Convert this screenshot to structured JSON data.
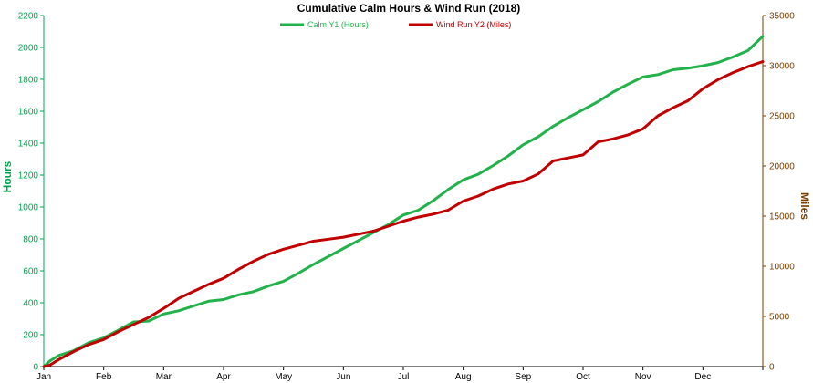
{
  "chart_data": {
    "type": "line",
    "title": "Cumulative Calm Hours & Wind Run (2018)",
    "categories": [
      "Jan",
      "Feb",
      "Mar",
      "Apr",
      "May",
      "Jun",
      "Jul",
      "Aug",
      "Sep",
      "Oct",
      "Nov",
      "Dec"
    ],
    "y1": {
      "label": "Hours",
      "lim": [
        0,
        2200
      ],
      "ticks": [
        0,
        200,
        400,
        600,
        800,
        1000,
        1200,
        1400,
        1600,
        1800,
        2000,
        2200
      ],
      "color": "#00A550"
    },
    "y2": {
      "label": "Miles",
      "lim": [
        0,
        35000
      ],
      "ticks": [
        0,
        5000,
        10000,
        15000,
        20000,
        25000,
        30000,
        35000
      ],
      "color": "#7B3F00"
    },
    "grid": false,
    "legend_position": "top",
    "series": [
      {
        "name": "Calm Y1 (Hours)",
        "axis": "y1",
        "color": "#22B24C",
        "x": [
          0,
          0.1,
          0.25,
          0.5,
          0.75,
          1,
          1.25,
          1.5,
          1.75,
          2,
          2.25,
          2.5,
          2.75,
          3,
          3.25,
          3.5,
          3.75,
          4,
          4.25,
          4.5,
          4.75,
          5,
          5.25,
          5.5,
          5.75,
          6,
          6.25,
          6.5,
          6.75,
          7,
          7.25,
          7.5,
          7.75,
          8,
          8.25,
          8.5,
          8.75,
          9,
          9.25,
          9.5,
          9.75,
          10,
          10.25,
          10.5,
          10.75,
          11,
          11.25,
          11.5,
          11.75,
          12
        ],
        "values": [
          0,
          35,
          70,
          100,
          150,
          180,
          230,
          280,
          285,
          330,
          350,
          380,
          410,
          420,
          450,
          470,
          505,
          535,
          585,
          640,
          690,
          740,
          790,
          840,
          890,
          950,
          980,
          1040,
          1110,
          1170,
          1205,
          1260,
          1320,
          1390,
          1440,
          1505,
          1560,
          1610,
          1660,
          1720,
          1770,
          1815,
          1830,
          1860,
          1870,
          1885,
          1905,
          1940,
          1980,
          2070
        ]
      },
      {
        "name": "Wind Run Y2 (Miles)",
        "axis": "y2",
        "color": "#C00000",
        "x": [
          0,
          0.1,
          0.25,
          0.5,
          0.75,
          1,
          1.25,
          1.5,
          1.75,
          2,
          2.25,
          2.5,
          2.75,
          3,
          3.25,
          3.5,
          3.75,
          4,
          4.25,
          4.5,
          4.75,
          5,
          5.25,
          5.5,
          5.75,
          6,
          6.25,
          6.5,
          6.75,
          7,
          7.25,
          7.5,
          7.75,
          8,
          8.25,
          8.5,
          8.75,
          9,
          9.25,
          9.5,
          9.75,
          10,
          10.25,
          10.5,
          10.75,
          11,
          11.25,
          11.5,
          11.75,
          12
        ],
        "values": [
          0,
          150,
          700,
          1500,
          2200,
          2700,
          3500,
          4200,
          4900,
          5800,
          6800,
          7500,
          8200,
          8800,
          9700,
          10500,
          11200,
          11700,
          12100,
          12500,
          12700,
          12900,
          13200,
          13500,
          14000,
          14500,
          14900,
          15200,
          15600,
          16500,
          17000,
          17700,
          18200,
          18500,
          19200,
          20500,
          20800,
          21100,
          22400,
          22700,
          23100,
          23700,
          25000,
          25800,
          26500,
          27700,
          28600,
          29300,
          29900,
          30400
        ]
      }
    ]
  }
}
